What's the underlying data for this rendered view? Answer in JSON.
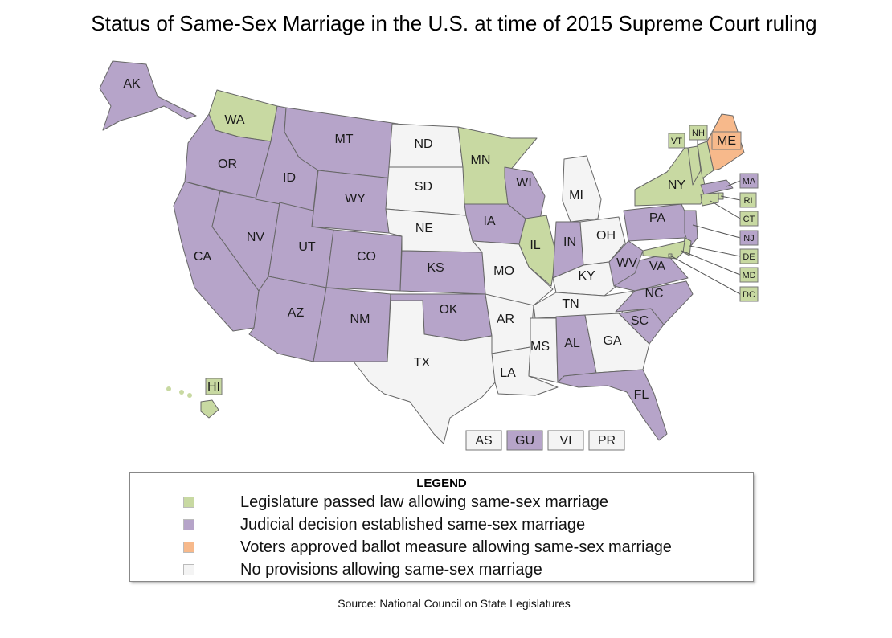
{
  "title": "Status of Same-Sex Marriage in the U.S. at time of 2015 Supreme Court ruling",
  "colors": {
    "legislature": "#c8d9a2",
    "judicial": "#b6a4c9",
    "ballot": "#f7b98b",
    "none": "#f4f4f4",
    "border": "#666666"
  },
  "states": [
    {
      "abbr": "AK",
      "status": "judicial"
    },
    {
      "abbr": "HI",
      "status": "legislature"
    },
    {
      "abbr": "WA",
      "status": "legislature"
    },
    {
      "abbr": "OR",
      "status": "judicial"
    },
    {
      "abbr": "CA",
      "status": "judicial"
    },
    {
      "abbr": "NV",
      "status": "judicial"
    },
    {
      "abbr": "ID",
      "status": "judicial"
    },
    {
      "abbr": "MT",
      "status": "judicial"
    },
    {
      "abbr": "WY",
      "status": "judicial"
    },
    {
      "abbr": "UT",
      "status": "judicial"
    },
    {
      "abbr": "CO",
      "status": "judicial"
    },
    {
      "abbr": "AZ",
      "status": "judicial"
    },
    {
      "abbr": "NM",
      "status": "judicial"
    },
    {
      "abbr": "ND",
      "status": "none"
    },
    {
      "abbr": "SD",
      "status": "none"
    },
    {
      "abbr": "NE",
      "status": "none"
    },
    {
      "abbr": "KS",
      "status": "judicial"
    },
    {
      "abbr": "OK",
      "status": "judicial"
    },
    {
      "abbr": "TX",
      "status": "none"
    },
    {
      "abbr": "MN",
      "status": "legislature"
    },
    {
      "abbr": "IA",
      "status": "judicial"
    },
    {
      "abbr": "MO",
      "status": "none"
    },
    {
      "abbr": "AR",
      "status": "none"
    },
    {
      "abbr": "LA",
      "status": "none"
    },
    {
      "abbr": "WI",
      "status": "judicial"
    },
    {
      "abbr": "IL",
      "status": "legislature"
    },
    {
      "abbr": "MI",
      "status": "none"
    },
    {
      "abbr": "IN",
      "status": "judicial"
    },
    {
      "abbr": "OH",
      "status": "none"
    },
    {
      "abbr": "KY",
      "status": "none"
    },
    {
      "abbr": "TN",
      "status": "none"
    },
    {
      "abbr": "MS",
      "status": "none"
    },
    {
      "abbr": "AL",
      "status": "judicial"
    },
    {
      "abbr": "GA",
      "status": "none"
    },
    {
      "abbr": "FL",
      "status": "judicial"
    },
    {
      "abbr": "SC",
      "status": "judicial"
    },
    {
      "abbr": "NC",
      "status": "judicial"
    },
    {
      "abbr": "VA",
      "status": "judicial"
    },
    {
      "abbr": "WV",
      "status": "judicial"
    },
    {
      "abbr": "PA",
      "status": "judicial"
    },
    {
      "abbr": "NY",
      "status": "legislature"
    },
    {
      "abbr": "VT",
      "status": "legislature"
    },
    {
      "abbr": "NH",
      "status": "legislature"
    },
    {
      "abbr": "ME",
      "status": "ballot"
    },
    {
      "abbr": "MA",
      "status": "judicial"
    },
    {
      "abbr": "RI",
      "status": "legislature"
    },
    {
      "abbr": "CT",
      "status": "legislature"
    },
    {
      "abbr": "NJ",
      "status": "judicial"
    },
    {
      "abbr": "DE",
      "status": "legislature"
    },
    {
      "abbr": "MD",
      "status": "legislature"
    },
    {
      "abbr": "DC",
      "status": "legislature"
    }
  ],
  "territories": [
    {
      "abbr": "AS",
      "status": "none"
    },
    {
      "abbr": "GU",
      "status": "judicial"
    },
    {
      "abbr": "VI",
      "status": "none"
    },
    {
      "abbr": "PR",
      "status": "none"
    }
  ],
  "legend": {
    "title": "LEGEND",
    "items": [
      {
        "status": "legislature",
        "label": "Legislature passed law allowing same-sex marriage"
      },
      {
        "status": "judicial",
        "label": "Judicial decision established same-sex marriage"
      },
      {
        "status": "ballot",
        "label": "Voters approved ballot measure allowing same-sex marriage"
      },
      {
        "status": "none",
        "label": "No provisions allowing same-sex marriage"
      }
    ]
  },
  "source": "Source: National Council on State Legislatures"
}
